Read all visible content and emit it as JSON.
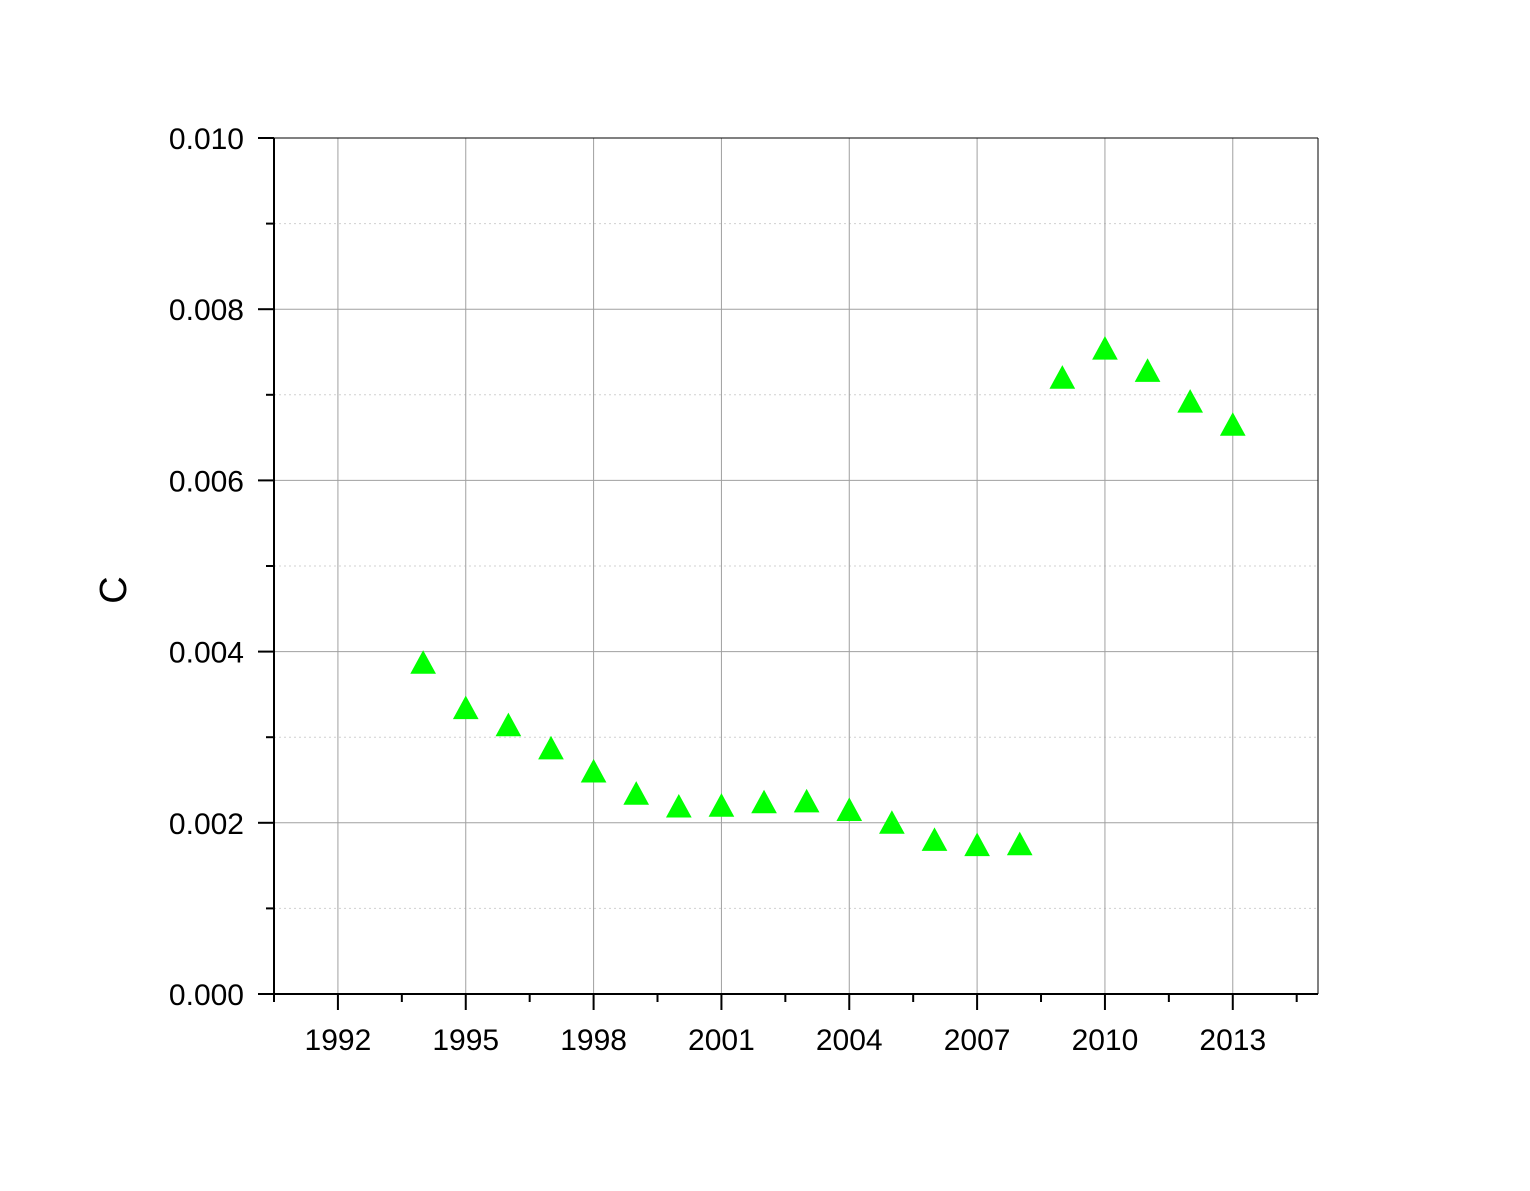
{
  "chart_data": {
    "type": "scatter",
    "title": "",
    "xlabel": "",
    "ylabel": "C",
    "xlim": [
      1990.5,
      2015
    ],
    "ylim": [
      0,
      0.01
    ],
    "x_ticks": [
      1992,
      1995,
      1998,
      2001,
      2004,
      2007,
      2010,
      2013
    ],
    "x_tick_labels": [
      "1992",
      "1995",
      "1998",
      "2001",
      "2004",
      "2007",
      "2010",
      "2013"
    ],
    "y_ticks": [
      0,
      0.002,
      0.004,
      0.006,
      0.008,
      0.01
    ],
    "y_tick_labels": [
      "0.000",
      "0.002",
      "0.004",
      "0.006",
      "0.008",
      "0.010"
    ],
    "grid": true,
    "marker": "triangle",
    "marker_color": "#00ff00",
    "series": [
      {
        "x": [
          1994,
          1995,
          1996,
          1997,
          1998,
          1999,
          2000,
          2001,
          2002,
          2003,
          2004,
          2005,
          2006,
          2007,
          2008,
          2009,
          2010,
          2011,
          2012,
          2013
        ],
        "y": [
          0.00385,
          0.00332,
          0.00312,
          0.00285,
          0.00258,
          0.00232,
          0.00217,
          0.00218,
          0.00222,
          0.00223,
          0.00213,
          0.00198,
          0.00178,
          0.00172,
          0.00173,
          0.00718,
          0.00752,
          0.00726,
          0.0069,
          0.00663
        ]
      }
    ]
  }
}
